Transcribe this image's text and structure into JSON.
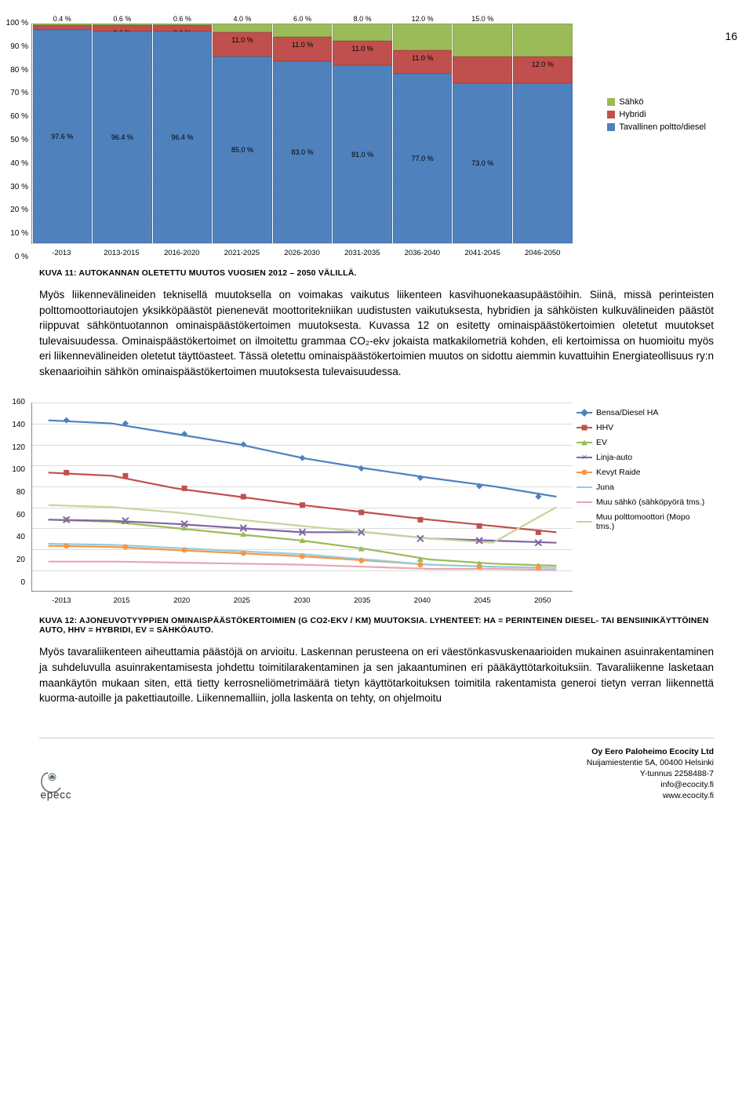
{
  "page_number": "16",
  "stacked_chart": {
    "type": "stacked-bar-100",
    "categories": [
      "-2013",
      "2013-2015",
      "2016-2020",
      "2021-2025",
      "2026-2030",
      "2031-2035",
      "2036-2040",
      "2041-2045",
      "2046-2050"
    ],
    "series": [
      {
        "name": "Tavallinen poltto/diesel",
        "key": "t",
        "color": "#4f81bd",
        "values": [
          97.6,
          96.4,
          96.4,
          85.0,
          83.0,
          81.0,
          77.0,
          73.0,
          73.0
        ]
      },
      {
        "name": "Hybridi",
        "key": "h",
        "color": "#c0504d",
        "values": [
          2.0,
          3.0,
          3.0,
          11.0,
          11.0,
          11.0,
          11.0,
          12.0,
          12.0
        ]
      },
      {
        "name": "Sähkö",
        "key": "s",
        "color": "#9bbb59",
        "values": [
          0.4,
          0.6,
          0.6,
          4.0,
          6.0,
          8.0,
          12.0,
          15.0,
          15.0
        ]
      }
    ],
    "labels": {
      "t": [
        "97.6 %",
        "96.4 %",
        "96.4 %",
        "85.0 %",
        "83.0 %",
        "81.0 %",
        "77.0 %",
        "73.0 %",
        ""
      ],
      "h": [
        "2.0 %",
        "3.0 %",
        "3.0 %",
        "11.0 %",
        "11.0 %",
        "11.0 %",
        "11.0 %",
        "",
        "12.0 %"
      ],
      "s": [
        "0.4 %",
        "0.6 %",
        "0.6 %",
        "4.0 %",
        "6.0 %",
        "8.0 %",
        "12.0 %",
        "15.0 %",
        ""
      ]
    },
    "y_ticks": [
      "100 %",
      "90 %",
      "80 %",
      "70 %",
      "60 %",
      "50 %",
      "40 %",
      "30 %",
      "20 %",
      "10 %",
      "0 %"
    ],
    "legend": {
      "sahko": "Sähkö",
      "hybridi": "Hybridi",
      "tav": "Tavallinen poltto/diesel"
    }
  },
  "caption1": "KUVA 11: AUTOKANNAN OLETETTU MUUTOS VUOSIEN 2012 – 2050 VÄLILLÄ.",
  "para1": "Myös liikennevälineiden teknisellä muutoksella on voimakas vaikutus liikenteen kasvihuonekaasupäästöihin. Siinä, missä perinteisten polttomoottoriautojen yksikköpäästöt pienenevät moottoritekniikan uudistusten vaikutuksesta, hybridien ja sähköisten kulkuvälineiden päästöt riippuvat sähköntuotannon ominaispäästökertoimen muutoksesta. Kuvassa 12 on esitetty ominaispäästökertoimien oletetut muutokset tulevaisuudessa. Ominaispäästökertoimet on ilmoitettu grammaa CO₂-ekv jokaista matkakilometriä kohden, eli kertoimissa on huomioitu myös eri liikennevälineiden oletetut täyttöasteet. Tässä oletettu ominaispäästökertoimien muutos on sidottu aiemmin kuvattuihin Energiateollisuus ry:n skenaarioihin sähkön ominaispäästökertoimen muutoksesta tulevaisuudessa.",
  "line_chart": {
    "type": "line",
    "x": [
      "-2013",
      "2015",
      "2020",
      "2025",
      "2030",
      "2035",
      "2040",
      "2045",
      "2050"
    ],
    "ylim": [
      -20,
      160
    ],
    "yticks": [
      0,
      20,
      40,
      60,
      80,
      100,
      120,
      140,
      160
    ],
    "series": [
      {
        "name": "Bensa/Diesel HA",
        "color": "#4f81bd",
        "marker": "diamond",
        "values": [
          143,
          140,
          130,
          120,
          107,
          97,
          88,
          80,
          70
        ]
      },
      {
        "name": "HHV",
        "color": "#c0504d",
        "marker": "square",
        "values": [
          93,
          90,
          78,
          70,
          62,
          55,
          48,
          42,
          36
        ]
      },
      {
        "name": "EV",
        "color": "#9bbb59",
        "marker": "triangle",
        "values": [
          48,
          46,
          40,
          34,
          28,
          20,
          10,
          6,
          4
        ]
      },
      {
        "name": "Linja-auto",
        "color": "#8064a2",
        "marker": "x",
        "values": [
          48,
          47,
          44,
          40,
          36,
          36,
          30,
          28,
          26
        ]
      },
      {
        "name": "Kevyt Raide",
        "color": "#f79646",
        "marker": "circle",
        "values": [
          23,
          22,
          19,
          16,
          13,
          9,
          5,
          3,
          2
        ]
      },
      {
        "name": "Juna",
        "color": "#93cddd",
        "marker": "none",
        "values": [
          25,
          24,
          21,
          18,
          15,
          10,
          5,
          3,
          2
        ]
      },
      {
        "name": "Muu sähkö (sähköpyörä tms.)",
        "color": "#e6a6b6",
        "marker": "none",
        "values": [
          8,
          8,
          7,
          6,
          5,
          3,
          1,
          1,
          0
        ]
      },
      {
        "name": "Muu polttomoottori (Mopo tms.)",
        "color": "#c3d69b",
        "marker": "none",
        "values": [
          62,
          60,
          55,
          48,
          42,
          36,
          30,
          26,
          60
        ]
      }
    ]
  },
  "caption2": "KUVA 12: AJONEUVOTYYPPIEN OMINAISPÄÄSTÖKERTOIMIEN (G CO2-EKV / KM) MUUTOKSIA. LYHENTEET: HA = PERINTEINEN DIESEL- TAI BENSIINIKÄYTTÖINEN AUTO, HHV = HYBRIDI, EV = SÄHKÖAUTO.",
  "para2": "Myös tavaraliikenteen aiheuttamia päästöjä on arvioitu. Laskennan perusteena on eri väestönkasvuskenaarioiden mukainen asuinrakentaminen ja suhdeluvulla asuinrakentamisesta johdettu toimitilarakentaminen ja sen jakaantuminen eri pääkäyttötarkoituksiin. Tavaraliikenne lasketaan maankäytön mukaan siten, että tietty kerrosneliömetrimäärä tietyn käyttötarkoituksen toimitila rakentamista generoi tietyn verran liikennettä kuorma-autoille ja pakettiautoille. Liikennemalliin, jolla laskenta on tehty, on ohjelmoitu",
  "footer": {
    "company": "Oy Eero Paloheimo Ecocity Ltd",
    "address": "Nuijamiestentie 5A, 00400 Helsinki",
    "vat": "Y-tunnus 2258488-7",
    "email": "info@ecocity.fi",
    "web": "www.ecocity.fi",
    "logo_text": "epecc"
  }
}
